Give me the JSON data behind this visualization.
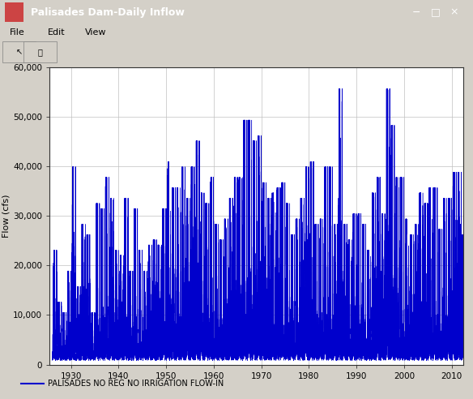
{
  "title": "Palisades Dam-Daily Inflow",
  "ylabel": "Flow (cfs)",
  "xlabel": "",
  "line_color": "#0000CC",
  "line_width": 0.3,
  "legend_label": "PALISADES NO REG NO IRRIGATION FLOW-IN",
  "xlim": [
    1925.5,
    2012.5
  ],
  "ylim": [
    0,
    60000
  ],
  "yticks": [
    0,
    10000,
    20000,
    30000,
    40000,
    50000,
    60000
  ],
  "ytick_labels": [
    "0",
    "10,000",
    "20,000",
    "30,000",
    "40,000",
    "50,000",
    "60,000"
  ],
  "xticks": [
    1930,
    1940,
    1950,
    1960,
    1970,
    1980,
    1990,
    2000,
    2010
  ],
  "start_year": 1926,
  "end_year": 2012,
  "bg_gray": "#d4d0c8",
  "plot_bg_color": "#ffffff",
  "legend_bg": "#f0f0f0",
  "grid_color": "#c0c0c0",
  "figsize": [
    5.84,
    4.92
  ],
  "dpi": 100,
  "annual_peak_means": {
    "1926": 22000,
    "1927": 12000,
    "1928": 10000,
    "1929": 18000,
    "1930": 38000,
    "1931": 15000,
    "1932": 27000,
    "1933": 25000,
    "1934": 10000,
    "1935": 31000,
    "1936": 30000,
    "1937": 36000,
    "1938": 32000,
    "1939": 22000,
    "1940": 21000,
    "1941": 32000,
    "1942": 18000,
    "1943": 30000,
    "1944": 22000,
    "1945": 18000,
    "1946": 23000,
    "1947": 24000,
    "1948": 23000,
    "1949": 30000,
    "1950": 39000,
    "1951": 34000,
    "1952": 34000,
    "1953": 38000,
    "1954": 32000,
    "1955": 38000,
    "1956": 43000,
    "1957": 33000,
    "1958": 31000,
    "1959": 36000,
    "1960": 27000,
    "1961": 24000,
    "1962": 28000,
    "1963": 32000,
    "1964": 36000,
    "1965": 36000,
    "1966": 47000,
    "1967": 47000,
    "1968": 43000,
    "1969": 44000,
    "1970": 35000,
    "1971": 32000,
    "1972": 33000,
    "1973": 34000,
    "1974": 35000,
    "1975": 31000,
    "1976": 25000,
    "1977": 28000,
    "1978": 32000,
    "1979": 38000,
    "1980": 39000,
    "1981": 27000,
    "1982": 28000,
    "1983": 38000,
    "1984": 38000,
    "1985": 27000,
    "1986": 53000,
    "1987": 27000,
    "1988": 24000,
    "1989": 29000,
    "1990": 29000,
    "1991": 27000,
    "1992": 22000,
    "1993": 33000,
    "1994": 36000,
    "1995": 29000,
    "1996": 53000,
    "1997": 46000,
    "1998": 36000,
    "1999": 36000,
    "2000": 28000,
    "2001": 25000,
    "2002": 27000,
    "2003": 33000,
    "2004": 31000,
    "2005": 34000,
    "2006": 34000,
    "2007": 26000,
    "2008": 32000,
    "2009": 32000,
    "2010": 37000,
    "2011": 37000,
    "2012": 25000
  }
}
